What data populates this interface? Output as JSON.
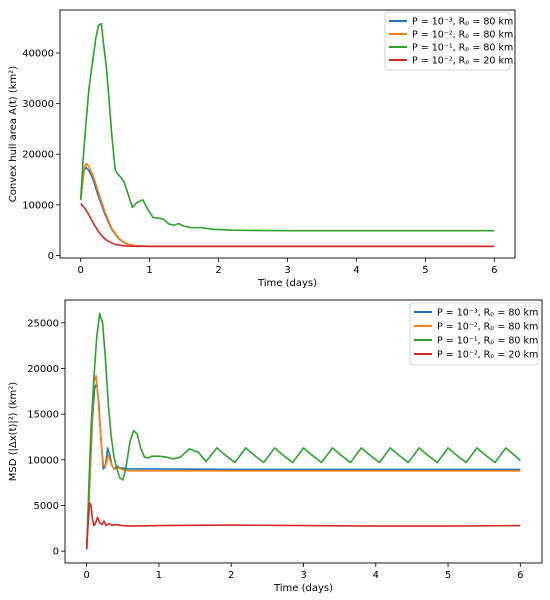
{
  "chart_data": [
    {
      "type": "line",
      "xlabel": "Time (days)",
      "ylabel": "Convex hull area A(t) (km²)",
      "xlim": [
        -0.3,
        6.3
      ],
      "ylim": [
        -500,
        48500
      ],
      "xticks": [
        0,
        1,
        2,
        3,
        4,
        5,
        6
      ],
      "yticks": [
        0,
        10000,
        20000,
        30000,
        40000
      ],
      "grid": false,
      "legend_position": "top-right",
      "series": [
        {
          "name": "P = 10⁻³, Rₚ = 80 km",
          "color": "#1f77b4",
          "x": [
            0,
            0.05,
            0.08,
            0.12,
            0.18,
            0.25,
            0.35,
            0.45,
            0.55,
            0.65,
            0.75,
            0.85,
            1.0,
            6.0
          ],
          "y": [
            11000,
            16800,
            17400,
            16800,
            15000,
            12000,
            8200,
            5200,
            3300,
            2400,
            2000,
            1850,
            1800,
            1800
          ]
        },
        {
          "name": "P = 10⁻², Rₚ = 80 km",
          "color": "#ff7f0e",
          "x": [
            0,
            0.05,
            0.08,
            0.12,
            0.18,
            0.25,
            0.35,
            0.45,
            0.55,
            0.65,
            0.75,
            0.85,
            1.0,
            6.0
          ],
          "y": [
            11000,
            17500,
            18100,
            17600,
            15800,
            12800,
            8700,
            5400,
            3400,
            2400,
            2000,
            1850,
            1800,
            1800
          ]
        },
        {
          "name": "P = 10⁻¹, Rₚ = 80 km",
          "color": "#2ca02c",
          "x": [
            0,
            0.03,
            0.07,
            0.12,
            0.17,
            0.22,
            0.26,
            0.3,
            0.33,
            0.37,
            0.41,
            0.45,
            0.5,
            0.53,
            0.58,
            0.63,
            0.68,
            0.75,
            0.82,
            0.9,
            0.97,
            1.05,
            1.12,
            1.2,
            1.28,
            1.35,
            1.42,
            1.5,
            1.6,
            1.75,
            1.9,
            2.05,
            2.2,
            2.5,
            3.0,
            4.0,
            5.0,
            6.0
          ],
          "y": [
            11000,
            18000,
            25000,
            33000,
            38000,
            43000,
            45500,
            45800,
            42000,
            37500,
            31000,
            24000,
            17000,
            16200,
            15500,
            14500,
            12500,
            9500,
            10500,
            11000,
            9200,
            7500,
            7400,
            7200,
            6200,
            6000,
            6300,
            5800,
            5500,
            5500,
            5200,
            5100,
            5000,
            4950,
            4900,
            4900,
            4900,
            4900
          ]
        },
        {
          "name": "P = 10⁻², Rₚ = 20 km",
          "color": "#d62728",
          "x": [
            0,
            0.05,
            0.1,
            0.15,
            0.2,
            0.25,
            0.3,
            0.35,
            0.4,
            0.5,
            0.6,
            0.7,
            0.8,
            1.0,
            6.0
          ],
          "y": [
            10200,
            9500,
            8500,
            7200,
            6000,
            4900,
            4000,
            3300,
            2800,
            2200,
            1950,
            1850,
            1800,
            1800,
            1800
          ]
        }
      ]
    },
    {
      "type": "line",
      "xlabel": "Time (days)",
      "ylabel": "MSD ⟨|Δx(t)|²⟩ (km²)",
      "xlim": [
        -0.3,
        6.3
      ],
      "ylim": [
        -1300,
        27500
      ],
      "xticks": [
        0,
        1,
        2,
        3,
        4,
        5,
        6
      ],
      "yticks": [
        0,
        5000,
        10000,
        15000,
        20000,
        25000
      ],
      "grid": false,
      "legend_position": "top-right",
      "series": [
        {
          "name": "P = 10⁻³, Rₚ = 80 km",
          "color": "#1f77b4",
          "x": [
            0,
            0.04,
            0.08,
            0.11,
            0.14,
            0.17,
            0.2,
            0.23,
            0.26,
            0.29,
            0.32,
            0.35,
            0.38,
            0.42,
            0.46,
            0.5,
            0.6,
            0.8,
            1.0,
            2.0,
            4.0,
            6.0
          ],
          "y": [
            200,
            7000,
            14500,
            17800,
            18400,
            16000,
            12000,
            9000,
            9300,
            11300,
            10500,
            9400,
            9000,
            9300,
            9100,
            9100,
            9000,
            9000,
            9000,
            8950,
            8950,
            8950
          ]
        },
        {
          "name": "P = 10⁻², Rₚ = 80 km",
          "color": "#ff7f0e",
          "x": [
            0,
            0.04,
            0.08,
            0.1,
            0.13,
            0.16,
            0.2,
            0.23,
            0.26,
            0.3,
            0.33,
            0.36,
            0.4,
            0.45,
            0.5,
            0.6,
            0.8,
            1.0,
            2.0,
            4.0,
            6.0
          ],
          "y": [
            200,
            7500,
            15500,
            18500,
            19200,
            16500,
            12000,
            9500,
            9300,
            10500,
            9800,
            9200,
            9000,
            9100,
            8900,
            8800,
            8800,
            8800,
            8800,
            8800,
            8800
          ]
        },
        {
          "name": "P = 10⁻¹, Rₚ = 80 km",
          "color": "#2ca02c",
          "x": [
            0,
            0.03,
            0.06,
            0.1,
            0.14,
            0.18,
            0.22,
            0.26,
            0.3,
            0.34,
            0.38,
            0.42,
            0.46,
            0.5,
            0.54,
            0.6,
            0.65,
            0.7,
            0.75,
            0.8,
            0.85,
            0.9,
            1.0,
            1.1,
            1.2,
            1.3,
            1.42,
            1.55,
            1.65,
            1.8,
            1.92,
            2.05,
            2.2,
            2.32,
            2.45,
            2.6,
            2.72,
            2.85,
            3.0,
            3.12,
            3.25,
            3.4,
            3.52,
            3.65,
            3.8,
            3.92,
            4.05,
            4.2,
            4.32,
            4.45,
            4.6,
            4.72,
            4.85,
            5.0,
            5.12,
            5.25,
            5.4,
            5.52,
            5.65,
            5.8,
            5.92,
            6.0
          ],
          "y": [
            200,
            7000,
            13500,
            19000,
            23500,
            26000,
            25000,
            21000,
            16000,
            12500,
            10200,
            9000,
            8000,
            7800,
            9000,
            12000,
            13200,
            12800,
            11200,
            10300,
            10200,
            10400,
            10400,
            10300,
            10100,
            10300,
            11200,
            10800,
            9800,
            11300,
            10500,
            9700,
            11300,
            10500,
            9700,
            11300,
            10500,
            9700,
            11300,
            10500,
            9700,
            11300,
            10500,
            9700,
            11300,
            10500,
            9700,
            11300,
            10500,
            9700,
            11300,
            10500,
            9700,
            11300,
            10500,
            9700,
            11300,
            10500,
            9700,
            11300,
            10500,
            9900
          ]
        },
        {
          "name": "P = 10⁻², Rₚ = 20 km",
          "color": "#d62728",
          "x": [
            0,
            0.02,
            0.04,
            0.06,
            0.08,
            0.1,
            0.12,
            0.15,
            0.18,
            0.21,
            0.24,
            0.27,
            0.3,
            0.35,
            0.4,
            0.5,
            0.6,
            1.0,
            2.0,
            3.0,
            4.0,
            5.0,
            6.0
          ],
          "y": [
            200,
            3000,
            5300,
            5000,
            3500,
            2800,
            3000,
            3700,
            3100,
            2900,
            3300,
            2800,
            3000,
            2850,
            2900,
            2800,
            2750,
            2800,
            2850,
            2800,
            2750,
            2750,
            2800
          ]
        }
      ]
    }
  ]
}
